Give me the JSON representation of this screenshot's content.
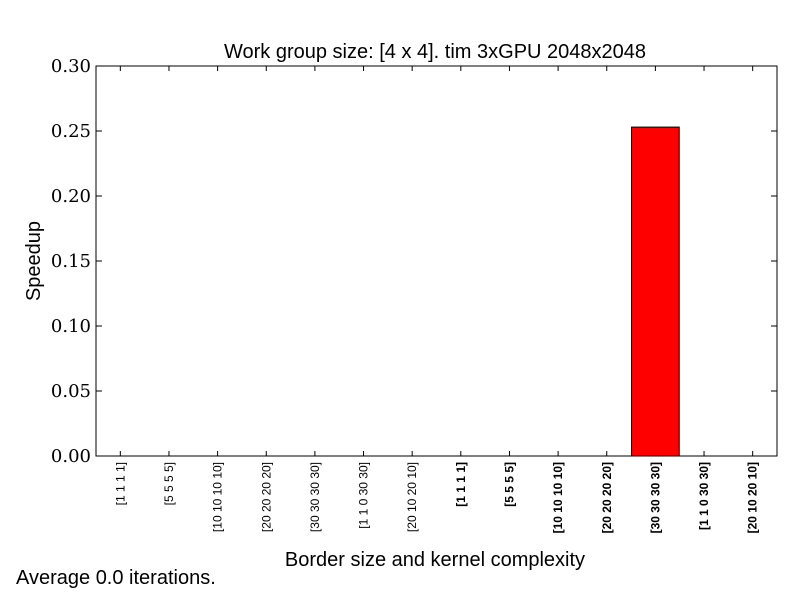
{
  "chart_data": {
    "type": "bar",
    "title": "Work group size: [4 x 4]. tim 3xGPU 2048x2048",
    "xlabel": "Border size and kernel complexity",
    "ylabel": "Speedup",
    "ylim": [
      0,
      0.3
    ],
    "yticks": [
      "0.00",
      "0.05",
      "0.10",
      "0.15",
      "0.20",
      "0.25",
      "0.30"
    ],
    "categories": [
      "[1 1 1 1]",
      "[5 5 5 5]",
      "[10 10 10 10]",
      "[20 20 20 20]",
      "[30 30 30 30]",
      "[1 1 0 30 30]",
      "[20 10 20 10]",
      "[1 1 1 1]",
      "[5 5 5 5]",
      "[10 10 10 10]",
      "[20 20 20 20]",
      "[30 30 30 30]",
      "[1 1 0 30 30]",
      "[20 10 20 10]"
    ],
    "bold_categories": [
      false,
      false,
      false,
      false,
      false,
      false,
      false,
      true,
      true,
      true,
      true,
      true,
      true,
      true
    ],
    "values": [
      0,
      0,
      0,
      0,
      0,
      0,
      0,
      0,
      0,
      0,
      0,
      0.253,
      0,
      0
    ],
    "bar_color": "#ff0000",
    "grid": false
  },
  "footnote": "Average 0.0 iterations."
}
